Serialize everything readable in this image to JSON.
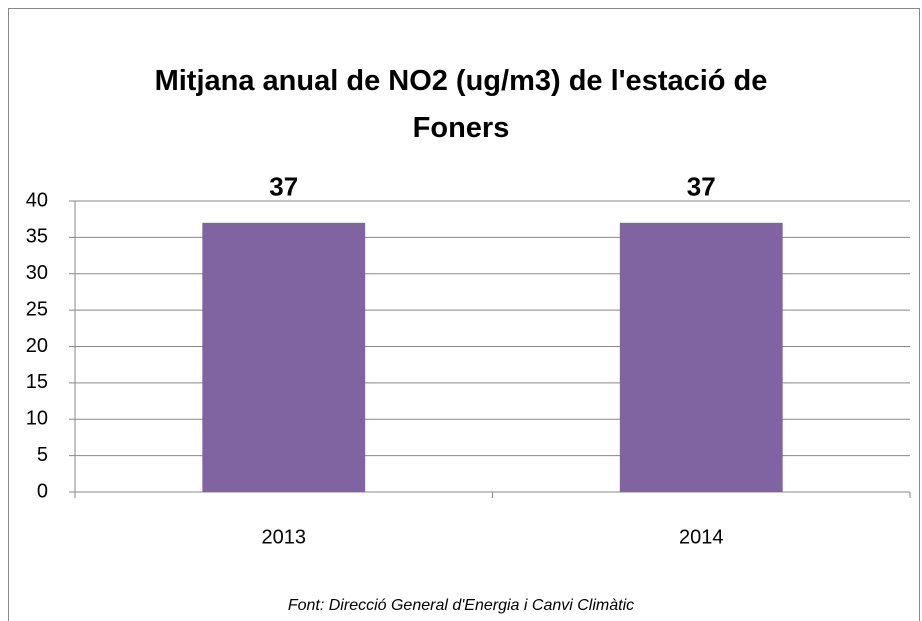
{
  "chart_data": {
    "type": "bar",
    "title": "Mitjana anual de NO2 (ug/m3) de l'estació de Foners",
    "categories": [
      "2013",
      "2014"
    ],
    "values": [
      37,
      37
    ],
    "color": "#8064a2",
    "ylim": [
      0,
      40
    ],
    "yticks": [
      0,
      5,
      10,
      15,
      20,
      25,
      30,
      35,
      40
    ],
    "grid": true,
    "source": "Font: Direcció General d'Energia i Canvi Climàtic"
  }
}
